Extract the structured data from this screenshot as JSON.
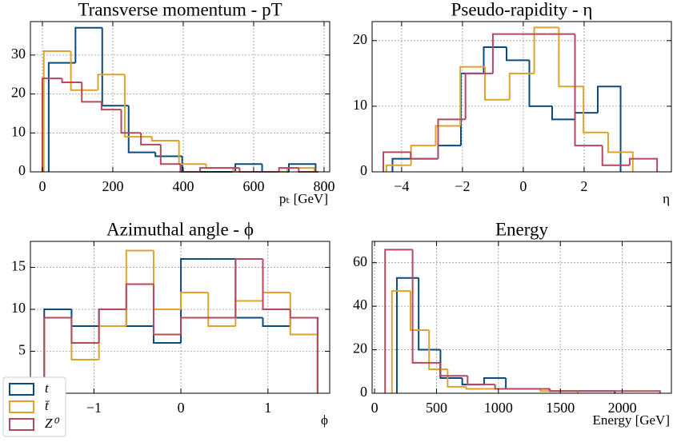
{
  "chart_data": [
    {
      "type": "histogram",
      "title": "Transverse momentum - pT",
      "xlabel": "pₜ [GeV]",
      "xlim": [
        -34,
        816
      ],
      "ylim": [
        0,
        38.6
      ],
      "xticks": [
        0,
        200,
        400,
        600,
        800
      ],
      "yticks": [
        0,
        10,
        20,
        30
      ],
      "grid": true,
      "series": [
        {
          "color": "#0b4a7e",
          "bins": [
            18,
            94,
            170,
            245,
            321,
            397,
            473,
            548,
            624,
            700,
            776
          ],
          "values": [
            28,
            37,
            17,
            5,
            4,
            0,
            0,
            2,
            0,
            2
          ]
        },
        {
          "color": "#dda32e",
          "bins": [
            4,
            81,
            158,
            234,
            311,
            388,
            465,
            542,
            618,
            695,
            772
          ],
          "values": [
            31,
            21,
            25,
            9,
            8,
            2,
            1,
            0,
            0,
            1
          ]
        },
        {
          "color": "#b4485f",
          "bins": [
            0,
            56,
            112,
            168,
            224,
            280,
            336,
            392,
            448,
            504,
            560,
            616,
            672,
            728,
            784
          ],
          "values": [
            24,
            23,
            18,
            16,
            10,
            7,
            2,
            0,
            1,
            1,
            0,
            0,
            1,
            0
          ]
        }
      ]
    },
    {
      "type": "histogram",
      "title": "Pseudo-rapidity - η",
      "xlabel": "η",
      "xlim": [
        -4.97,
        4.87
      ],
      "ylim": [
        0,
        22.9
      ],
      "xticks": [
        {
          "value": -4,
          "label": "−4"
        },
        {
          "value": -2,
          "label": "−2"
        },
        0,
        2
      ],
      "yticks": [
        0,
        10,
        20
      ],
      "grid": true,
      "series": [
        {
          "color": "#0b4a7e",
          "bins": [
            -4.3,
            -3.55,
            -2.8,
            -2.05,
            -1.3,
            -0.55,
            0.2,
            0.95,
            1.7,
            2.45,
            3.2
          ],
          "values": [
            2,
            2,
            4,
            15,
            19,
            17,
            10,
            8,
            9,
            13
          ]
        },
        {
          "color": "#dda32e",
          "bins": [
            -4.5,
            -3.69,
            -2.88,
            -2.07,
            -1.26,
            -0.45,
            0.36,
            1.17,
            1.98,
            2.79,
            3.6
          ],
          "values": [
            1,
            4,
            7,
            16,
            11,
            15,
            22,
            13,
            6,
            3
          ]
        },
        {
          "color": "#b4485f",
          "bins": [
            -4.6,
            -3.7,
            -2.8,
            -1.9,
            -1.0,
            -0.1,
            0.8,
            1.7,
            2.6,
            3.5,
            4.4
          ],
          "values": [
            3,
            2,
            8,
            15,
            21,
            21,
            21,
            4,
            1,
            2
          ]
        }
      ]
    },
    {
      "type": "histogram",
      "title": "Azimuthal angle - ϕ",
      "xlabel": "ϕ",
      "xlim": [
        -1.73,
        1.71
      ],
      "ylim": [
        0,
        18.1
      ],
      "xticks": [
        {
          "value": -1,
          "label": "−1"
        },
        0,
        1
      ],
      "yticks": [
        0,
        5,
        10,
        15
      ],
      "grid": true,
      "legend": "lower left",
      "series": [
        {
          "name": "t",
          "color": "#0b4a7e",
          "bins": [
            -1.571,
            -1.257,
            -0.942,
            -0.628,
            -0.314,
            0,
            0.314,
            0.628,
            0.942,
            1.257,
            1.571
          ],
          "values": [
            10,
            8,
            10,
            8,
            6,
            16,
            16,
            9,
            8,
            9
          ]
        },
        {
          "name": "t̄",
          "color": "#dda32e",
          "bins": [
            -1.571,
            -1.257,
            -0.942,
            -0.628,
            -0.314,
            0,
            0.314,
            0.628,
            0.942,
            1.257,
            1.571
          ],
          "values": [
            9,
            4,
            8,
            17,
            10,
            12,
            8,
            11,
            12,
            7
          ]
        },
        {
          "name": "Z⁰",
          "color": "#b4485f",
          "bins": [
            -1.571,
            -1.257,
            -0.942,
            -0.628,
            -0.314,
            0,
            0.314,
            0.628,
            0.942,
            1.257,
            1.571
          ],
          "values": [
            9,
            6,
            10,
            13,
            7,
            9,
            9,
            16,
            10,
            9
          ]
        }
      ]
    },
    {
      "type": "histogram",
      "title": "Energy",
      "xlabel": "Energy [GeV]",
      "xlim": [
        -20,
        2397
      ],
      "ylim": [
        0,
        69.8
      ],
      "xticks": [
        0,
        500,
        1000,
        1500,
        2000
      ],
      "yticks": [
        0,
        20,
        40,
        60
      ],
      "grid": true,
      "series": [
        {
          "color": "#0b4a7e",
          "bins": [
            180,
            356,
            532,
            708,
            884,
            1060,
            1236,
            1412,
            1588,
            1764,
            1940
          ],
          "values": [
            53,
            20,
            7,
            4,
            7,
            2,
            2,
            1,
            1,
            1
          ]
        },
        {
          "color": "#dda32e",
          "bins": [
            140,
            290,
            440,
            590,
            740,
            890,
            1040,
            1190,
            1340,
            1490,
            1640
          ],
          "values": [
            47,
            29,
            11,
            3,
            2,
            2,
            2,
            2,
            1,
            1
          ]
        },
        {
          "color": "#b4485f",
          "bins": [
            85,
            307,
            529,
            751,
            973,
            1195,
            1417,
            1639,
            1861,
            2083,
            2305
          ],
          "values": [
            66,
            14,
            8,
            4,
            2,
            2,
            1,
            1,
            1,
            1
          ]
        }
      ]
    }
  ]
}
